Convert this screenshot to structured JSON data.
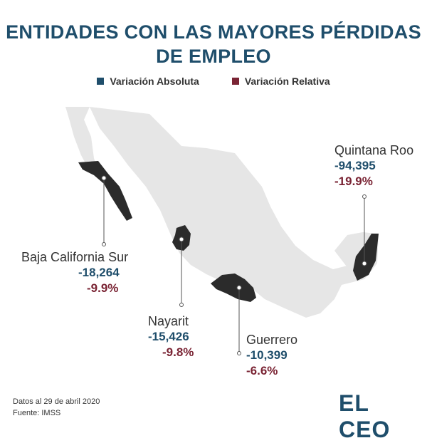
{
  "title_line1": "ENTIDADES CON LAS MAYORES PÉRDIDAS",
  "title_line2": "DE EMPLEO",
  "legend": {
    "absolute": {
      "label": "Variación Absoluta",
      "color": "#1f4e6b"
    },
    "relative": {
      "label": "Variación Relativa",
      "color": "#7a2434"
    }
  },
  "states": {
    "bcs": {
      "name": "Baja California Sur",
      "absolute": "-18,264",
      "relative": "-9.9%"
    },
    "nayarit": {
      "name": "Nayarit",
      "absolute": "-15,426",
      "relative": "-9.8%"
    },
    "guerrero": {
      "name": "Guerrero",
      "absolute": "-10,399",
      "relative": "-6.6%"
    },
    "qroo": {
      "name": "Quintana Roo",
      "absolute": "-94,395",
      "relative": "-19.9%"
    }
  },
  "footer": {
    "line1": "Datos al 29 de abril 2020",
    "line2": "Fuente: IMSS"
  },
  "brand": "EL CEO",
  "colors": {
    "map_fill": "#e6e6e6",
    "highlight": "#2b2b2b"
  }
}
